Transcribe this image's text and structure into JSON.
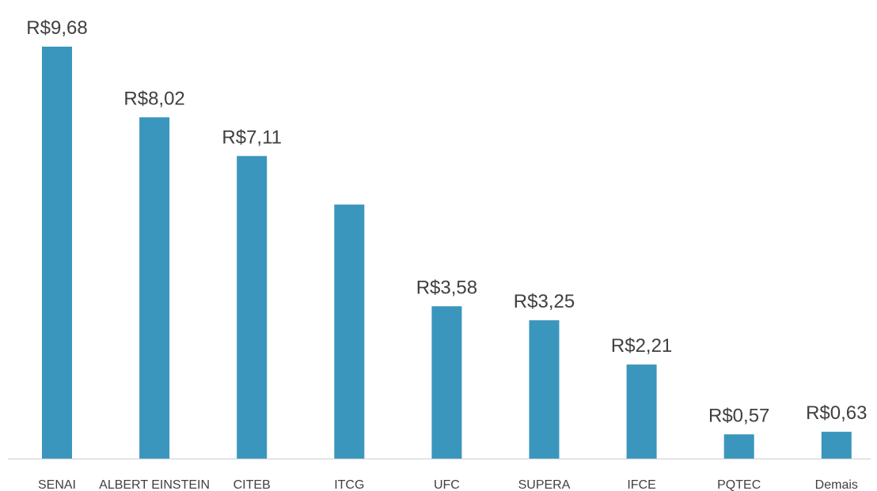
{
  "chart_data": {
    "type": "bar",
    "categories": [
      "SENAI",
      "ALBERT EINSTEIN",
      "CITEB",
      "ITCG",
      "UFC",
      "SUPERA",
      "IFCE",
      "PQTEC",
      "Demais"
    ],
    "values": [
      9.68,
      8.02,
      7.11,
      5.97,
      3.58,
      3.25,
      2.21,
      0.57,
      0.63
    ],
    "value_labels": [
      "R$9,68",
      "R$8,02",
      "R$7,11",
      null,
      "R$3,58",
      "R$3,25",
      "R$2,21",
      "R$0,57",
      "R$0,63"
    ],
    "color": "#3a96bd"
  }
}
